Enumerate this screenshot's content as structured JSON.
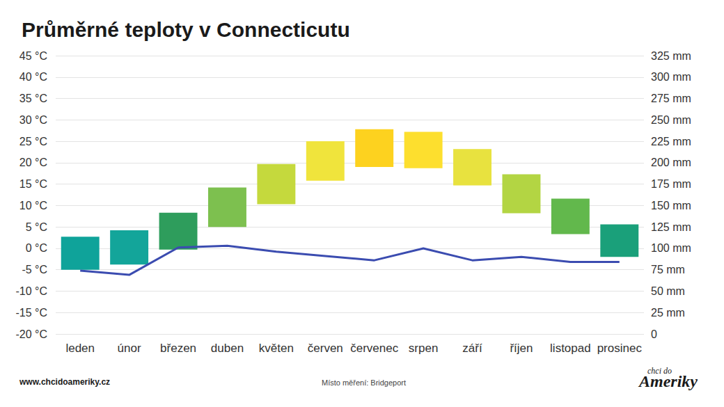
{
  "chart_data": {
    "type": "bar",
    "title": "Průměrné teploty v Connecticutu",
    "categories": [
      "leden",
      "únor",
      "březen",
      "duben",
      "květen",
      "červen",
      "červenec",
      "srpen",
      "září",
      "říjen",
      "listopad",
      "prosinec"
    ],
    "low": [
      -5,
      -3.8,
      -0.3,
      5,
      10.3,
      15.8,
      19,
      18.7,
      14.7,
      8.2,
      3.3,
      -2
    ],
    "high": [
      2.7,
      4.2,
      8.3,
      14.2,
      19.7,
      25,
      27.8,
      27.2,
      23.2,
      17.3,
      11.6,
      5.6
    ],
    "colors": [
      "#0fa39a",
      "#13a59a",
      "#2e9d5c",
      "#7dc04f",
      "#c5d93d",
      "#f0e43c",
      "#fdd21f",
      "#fddf2e",
      "#e8e23f",
      "#b3d543",
      "#62b84c",
      "#1aa07a"
    ],
    "series": [
      {
        "type": "line",
        "axis": "y2",
        "color": "#3b4cb0",
        "values": [
          74,
          69,
          101,
          103,
          96,
          91,
          86,
          100,
          86,
          90,
          84,
          84
        ]
      }
    ],
    "ylim": [
      -20,
      45
    ],
    "yticks": [
      {
        "value": -20,
        "label": "-20 °C"
      },
      {
        "value": -15,
        "label": "-15 °C"
      },
      {
        "value": -10,
        "label": "-10 °C"
      },
      {
        "value": -5,
        "label": "-5 °C"
      },
      {
        "value": 0,
        "label": "0 °C"
      },
      {
        "value": 5,
        "label": "5 °C"
      },
      {
        "value": 10,
        "label": "10 °C"
      },
      {
        "value": 15,
        "label": "15 °C"
      },
      {
        "value": 20,
        "label": "20 °C"
      },
      {
        "value": 25,
        "label": "25 °C"
      },
      {
        "value": 30,
        "label": "30 °C"
      },
      {
        "value": 35,
        "label": "35 °C"
      },
      {
        "value": 40,
        "label": "40 °C"
      },
      {
        "value": 45,
        "label": "45 °C"
      }
    ],
    "y2lim": [
      0,
      325
    ],
    "y2ticks": [
      {
        "value": 0,
        "label": "0"
      },
      {
        "value": 25,
        "label": "25 mm"
      },
      {
        "value": 50,
        "label": "50 mm"
      },
      {
        "value": 75,
        "label": "75 mm"
      },
      {
        "value": 100,
        "label": "100 mm"
      },
      {
        "value": 125,
        "label": "125 mm"
      },
      {
        "value": 150,
        "label": "150 mm"
      },
      {
        "value": 175,
        "label": "175 mm"
      },
      {
        "value": 200,
        "label": "200 mm"
      },
      {
        "value": 225,
        "label": "225 mm"
      },
      {
        "value": 250,
        "label": "250 mm"
      },
      {
        "value": 275,
        "label": "275 mm"
      },
      {
        "value": 300,
        "label": "300 mm"
      },
      {
        "value": 325,
        "label": "325 mm"
      }
    ],
    "grid": true,
    "annotations": {
      "website": "www.chcidoameriky.cz",
      "source": "Místo měření: Bridgeport",
      "logo": [
        "chci do",
        "Ameriky"
      ]
    }
  }
}
